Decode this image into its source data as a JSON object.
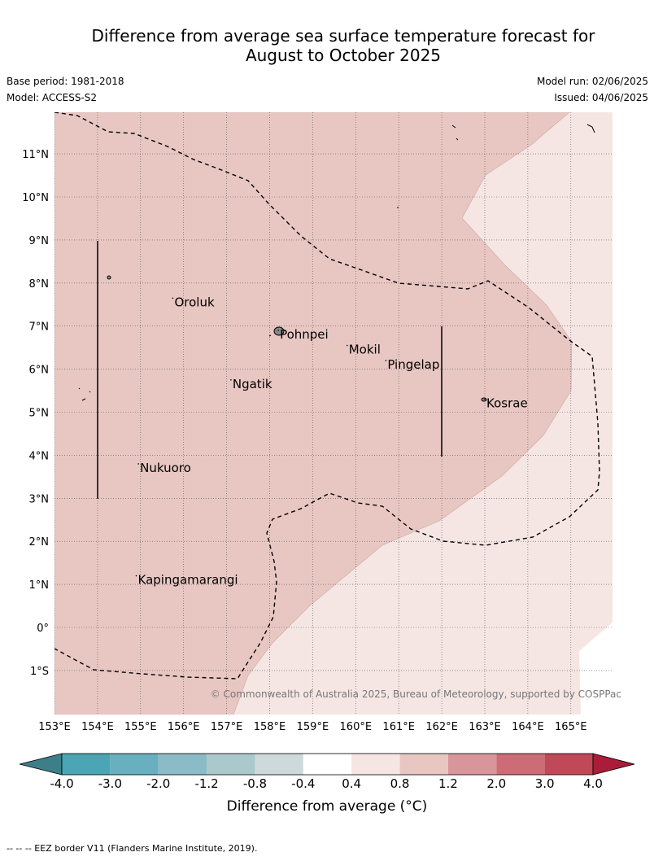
{
  "title_line1": "Difference from average sea surface temperature forecast for",
  "title_line2": "August to October 2025",
  "base_period": "Base period: 1981-2018",
  "model": "Model: ACCESS-S2",
  "model_run": "Model run: 02/06/2025",
  "issued": "Issued: 04/06/2025",
  "copyright": "© Commonwealth of Australia 2025, Bureau of Meteorology, supported by COSPPac",
  "lon_labels": [
    "153°E",
    "154°E",
    "155°E",
    "156°E",
    "157°E",
    "158°E",
    "159°E",
    "160°E",
    "161°E",
    "162°E",
    "163°E",
    "164°E",
    "165°E"
  ],
  "lat_labels": [
    "11°N",
    "10°N",
    "9°N",
    "8°N",
    "7°N",
    "6°N",
    "5°N",
    "4°N",
    "3°N",
    "2°N",
    "1°N",
    "0°",
    "1°S"
  ],
  "places": [
    {
      "name": "Oroluk",
      "lon": 155.75,
      "lat": 7.65
    },
    {
      "name": "Pohnpei",
      "lon": 158.2,
      "lat": 6.9
    },
    {
      "name": "Mokil",
      "lon": 159.8,
      "lat": 6.55
    },
    {
      "name": "Pingelap",
      "lon": 160.7,
      "lat": 6.2
    },
    {
      "name": "Ngatik",
      "lon": 157.1,
      "lat": 5.75
    },
    {
      "name": "Kosrae",
      "lon": 163.0,
      "lat": 5.3
    },
    {
      "name": "Nukuoro",
      "lon": 154.95,
      "lat": 3.8
    },
    {
      "name": "Kapingamarangi",
      "lon": 154.9,
      "lat": 1.2
    }
  ],
  "colorbar": {
    "labels": [
      "-4.0",
      "-3.0",
      "-2.0",
      "-1.2",
      "-0.8",
      "-0.4",
      "0.4",
      "0.8",
      "1.2",
      "2.0",
      "3.0",
      "4.0"
    ],
    "colors": [
      "#4aa5b5",
      "#68b0bf",
      "#8bbbc6",
      "#a9c9cc",
      "#cdd9da",
      "#ffffff",
      "#f5e6e4",
      "#e8c7c2",
      "#d8959b",
      "#cd6b76",
      "#c04857"
    ],
    "low_extend": "#3d7f89",
    "high_extend": "#aa1c39",
    "title": "Difference from average (°C)"
  },
  "fill_colors": {
    "warm": "#e8c7c2",
    "light": "#f5e6e4"
  },
  "footnote": "-- -- -- EEZ border V11 (Flanders Marine Institute, 2019)."
}
